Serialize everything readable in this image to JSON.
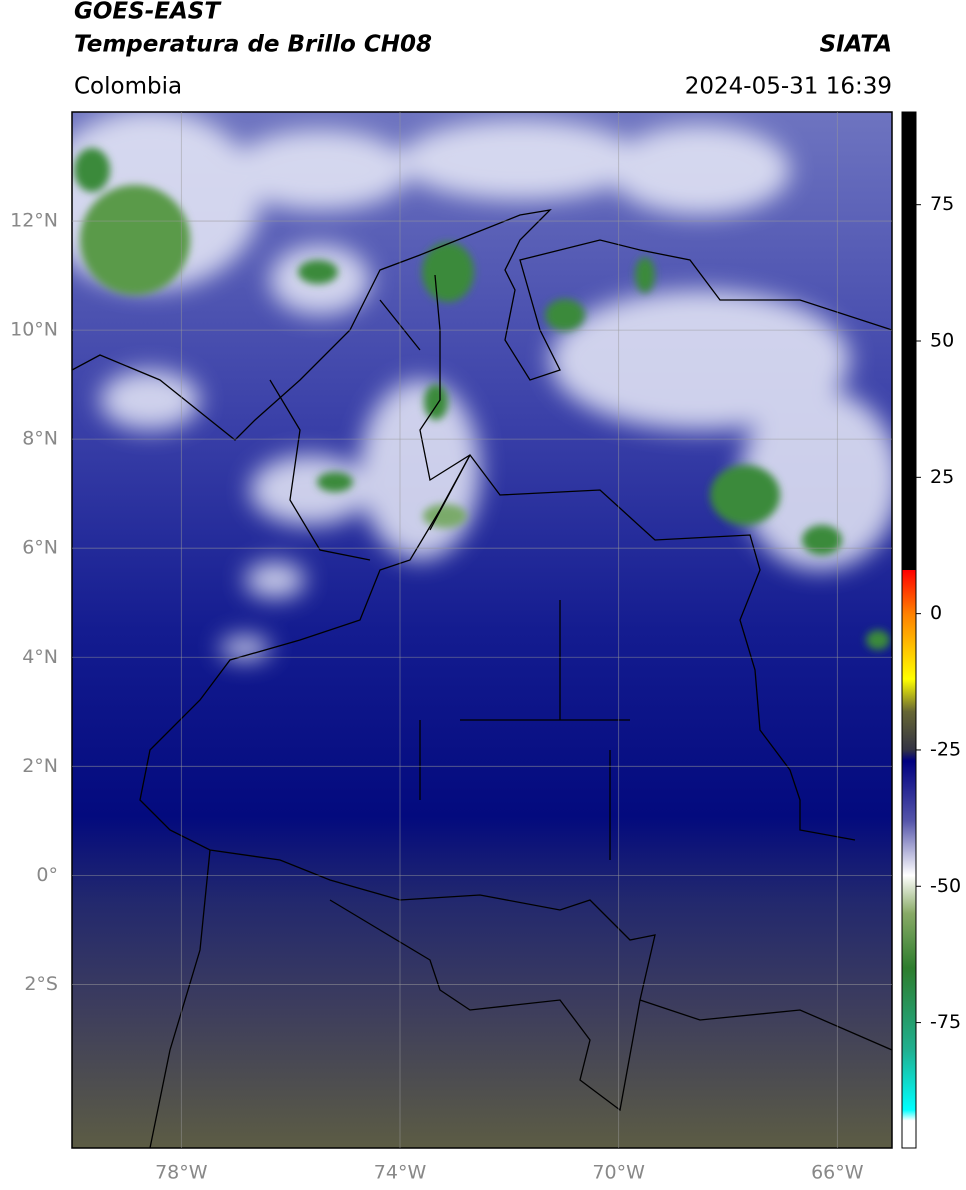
{
  "header": {
    "title": "GOES-EAST",
    "subtitle": "Temperatura de Brillo CH08",
    "source": "SIATA",
    "region": "Colombia",
    "datetime": "2024-05-31 16:39"
  },
  "map": {
    "xlim": [
      -80,
      -65
    ],
    "ylim": [
      -5,
      14
    ],
    "xticks": [
      {
        "value": -78,
        "label": "78°W"
      },
      {
        "value": -74,
        "label": "74°W"
      },
      {
        "value": -70,
        "label": "70°W"
      },
      {
        "value": -66,
        "label": "66°W"
      }
    ],
    "yticks": [
      {
        "value": 12,
        "label": "12°N"
      },
      {
        "value": 10,
        "label": "10°N"
      },
      {
        "value": 8,
        "label": "8°N"
      },
      {
        "value": 6,
        "label": "6°N"
      },
      {
        "value": 4,
        "label": "4°N"
      },
      {
        "value": 2,
        "label": "2°N"
      },
      {
        "value": 0,
        "label": "0°"
      },
      {
        "value": -2,
        "label": "2°S"
      }
    ],
    "grid": true
  },
  "colorbar": {
    "lim": [
      -98,
      92
    ],
    "ticks": [
      75,
      50,
      25,
      0,
      -25,
      -50,
      -75
    ],
    "stops": [
      {
        "value": 92,
        "color": "#000000"
      },
      {
        "value": 8,
        "color": "#000000"
      },
      {
        "value": 8,
        "color": "#ff0000"
      },
      {
        "value": 0,
        "color": "#ff8000"
      },
      {
        "value": -12,
        "color": "#ffff00"
      },
      {
        "value": -18,
        "color": "#666633"
      },
      {
        "value": -25,
        "color": "#333344"
      },
      {
        "value": -27,
        "color": "#000080"
      },
      {
        "value": -38,
        "color": "#5555aa"
      },
      {
        "value": -48,
        "color": "#ffffff"
      },
      {
        "value": -55,
        "color": "#88aa66"
      },
      {
        "value": -65,
        "color": "#2d7d2d"
      },
      {
        "value": -80,
        "color": "#20b090"
      },
      {
        "value": -91,
        "color": "#00ffff"
      },
      {
        "value": -93,
        "color": "#ffffff"
      },
      {
        "value": -98,
        "color": "#ffffff"
      }
    ]
  }
}
